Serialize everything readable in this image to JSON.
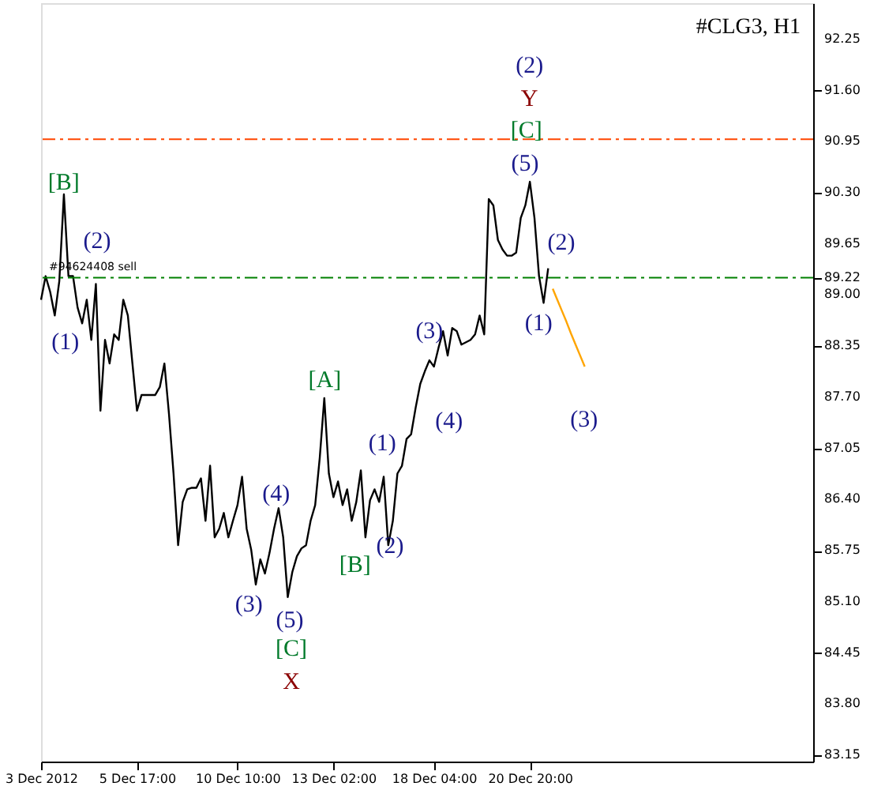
{
  "chart_data": {
    "type": "line",
    "title": "#CLG3, H1",
    "categories": [
      "3 Dec 2012",
      null,
      null,
      null,
      null,
      null,
      null,
      null,
      null,
      null,
      null,
      null,
      null,
      null,
      null,
      null,
      null,
      null,
      null,
      null,
      null,
      "5 Dec 17:00",
      null,
      null,
      null,
      null,
      null,
      null,
      null,
      null,
      null,
      null,
      null,
      null,
      null,
      null,
      null,
      null,
      null,
      null,
      null,
      null,
      null,
      "10 Dec 10:00",
      null,
      null,
      null,
      null,
      null,
      null,
      null,
      null,
      null,
      null,
      null,
      null,
      null,
      null,
      null,
      null,
      null,
      null,
      null,
      null,
      "13 Dec 02:00",
      null,
      null,
      null,
      null,
      null,
      null,
      null,
      null,
      null,
      null,
      null,
      null,
      null,
      null,
      null,
      null,
      null,
      null,
      null,
      null,
      null,
      "18 Dec 04:00",
      null,
      null,
      null,
      null,
      null,
      null,
      null,
      null,
      null,
      null,
      null,
      null,
      null,
      null,
      null,
      null,
      null,
      null,
      null,
      null,
      "20 Dec 20:00",
      null,
      null,
      null,
      null,
      null,
      null,
      null,
      null,
      null,
      null,
      null,
      null,
      null,
      null,
      null,
      null,
      null,
      null,
      null,
      null,
      null,
      null,
      null,
      null,
      null,
      null,
      null,
      null,
      null,
      null,
      null,
      null,
      null,
      null,
      null,
      null,
      null,
      null,
      null,
      null,
      null,
      null,
      null,
      null,
      null,
      null,
      null,
      null,
      null,
      null,
      null,
      null,
      null,
      null,
      null,
      null,
      null,
      null,
      null,
      null,
      null,
      null
    ],
    "ylim": [
      83.07,
      92.71
    ],
    "yticks": [
      {
        "value": 83.15,
        "label": "83.15"
      },
      {
        "value": 83.8,
        "label": "83.80"
      },
      {
        "value": 84.45,
        "label": "84.45"
      },
      {
        "value": 85.1,
        "label": "85.10"
      },
      {
        "value": 85.75,
        "label": "85.75"
      },
      {
        "value": 86.4,
        "label": "86.40"
      },
      {
        "value": 87.05,
        "label": "87.05"
      },
      {
        "value": 87.7,
        "label": "87.70"
      },
      {
        "value": 88.35,
        "label": "88.35"
      },
      {
        "value": 89.0,
        "label": "89.00"
      },
      89.22,
      {
        "value": 89.65,
        "label": "89.65"
      },
      {
        "value": 90.3,
        "label": "90.30"
      },
      {
        "value": 90.95,
        "label": "90.95"
      },
      {
        "value": 91.6,
        "label": "91.60"
      },
      92.25
    ],
    "grid": false,
    "marker": "none",
    "line_style": "solid",
    "series": [
      {
        "color": "#000000",
        "values": [
          88.94,
          89.24,
          89.04,
          88.74,
          89.18,
          90.28,
          89.24,
          89.24,
          88.84,
          88.64,
          88.94,
          88.43,
          89.14,
          87.53,
          88.43,
          88.13,
          88.5,
          88.43,
          88.94,
          88.74,
          88.13,
          87.53,
          87.73,
          87.73,
          87.73,
          87.73,
          87.83,
          88.13,
          87.49,
          86.73,
          85.82,
          86.37,
          86.53,
          86.55,
          86.55,
          86.67,
          86.13,
          86.83,
          85.92,
          86.03,
          86.23,
          85.92,
          86.13,
          86.33,
          86.69,
          86.03,
          85.76,
          85.32,
          85.64,
          85.46,
          85.72,
          86.03,
          86.29,
          85.92,
          85.16,
          85.48,
          85.68,
          85.78,
          85.82,
          86.13,
          86.33,
          86.93,
          87.69,
          86.73,
          86.43,
          86.63,
          86.33,
          86.53,
          86.13,
          86.37,
          86.77,
          85.92,
          86.39,
          86.53,
          86.37,
          86.69,
          85.82,
          86.13,
          86.73,
          86.83,
          87.17,
          87.23,
          87.57,
          87.87,
          88.03,
          88.17,
          88.09,
          88.33,
          88.54,
          88.23,
          88.58,
          88.54,
          88.37,
          88.4,
          88.43,
          88.5,
          88.74,
          88.5,
          90.22,
          90.14,
          89.7,
          89.58,
          89.5,
          89.5,
          89.54,
          89.98,
          90.14,
          90.44,
          89.98,
          89.24,
          88.9,
          89.34,
          null,
          null,
          null,
          null,
          null,
          null,
          null,
          null,
          null,
          null,
          null,
          null,
          null,
          null,
          null,
          null,
          null,
          null,
          null,
          null,
          null,
          null,
          null,
          null,
          null,
          null,
          null,
          null,
          null,
          null,
          null,
          null,
          null,
          null,
          null,
          null,
          null,
          null,
          null,
          null,
          null,
          null,
          null,
          null,
          null,
          null,
          null,
          null,
          null,
          null,
          null,
          null,
          null,
          null,
          null,
          null,
          null,
          null
        ]
      },
      {
        "color": "#ffa500",
        "values": [
          null,
          null,
          null,
          null,
          null,
          null,
          null,
          null,
          null,
          null,
          null,
          null,
          null,
          null,
          null,
          null,
          null,
          null,
          null,
          null,
          null,
          null,
          null,
          null,
          null,
          null,
          null,
          null,
          null,
          null,
          null,
          null,
          null,
          null,
          null,
          null,
          null,
          null,
          null,
          null,
          null,
          null,
          null,
          null,
          null,
          null,
          null,
          null,
          null,
          null,
          null,
          null,
          null,
          null,
          null,
          null,
          null,
          null,
          null,
          null,
          null,
          null,
          null,
          null,
          null,
          null,
          null,
          null,
          null,
          null,
          null,
          null,
          null,
          null,
          null,
          null,
          null,
          null,
          null,
          null,
          null,
          null,
          null,
          null,
          null,
          null,
          null,
          null,
          null,
          null,
          null,
          null,
          null,
          null,
          null,
          null,
          null,
          null,
          null,
          null,
          null,
          null,
          null,
          null,
          null,
          null,
          null,
          null,
          null,
          null,
          null,
          null,
          89.08,
          88.94,
          88.8,
          88.66,
          88.51,
          88.37,
          88.23,
          88.09,
          null,
          null,
          null,
          null,
          null,
          null,
          null,
          null,
          null,
          null,
          null,
          null,
          null,
          null,
          null,
          null,
          null,
          null,
          null,
          null,
          null,
          null,
          null,
          null,
          null,
          null,
          null,
          null,
          null,
          null,
          null,
          null,
          null,
          null,
          null,
          null,
          null,
          null,
          null,
          null,
          null,
          null,
          null,
          null,
          null,
          null,
          null,
          null,
          null,
          null
        ]
      }
    ],
    "ref_lines": [
      {
        "axis": "y",
        "value": 90.98,
        "label": null,
        "color": "#ff4500",
        "line_style": "dashed"
      },
      {
        "axis": "y",
        "value": 89.22,
        "label": "#94624408 sell",
        "color": "#008000",
        "line_style": "dashed"
      }
    ],
    "annotations": [
      "[B]",
      "(2)",
      "(1)",
      "[A]",
      "(4)",
      "(3)",
      "(5)",
      "[C]",
      "X",
      "[B]",
      "(2)",
      "(1)",
      "(3)",
      "(4)",
      "(2)",
      "Y",
      "[C]",
      "(5)",
      "(2)",
      "(1)",
      "(3)"
    ]
  }
}
